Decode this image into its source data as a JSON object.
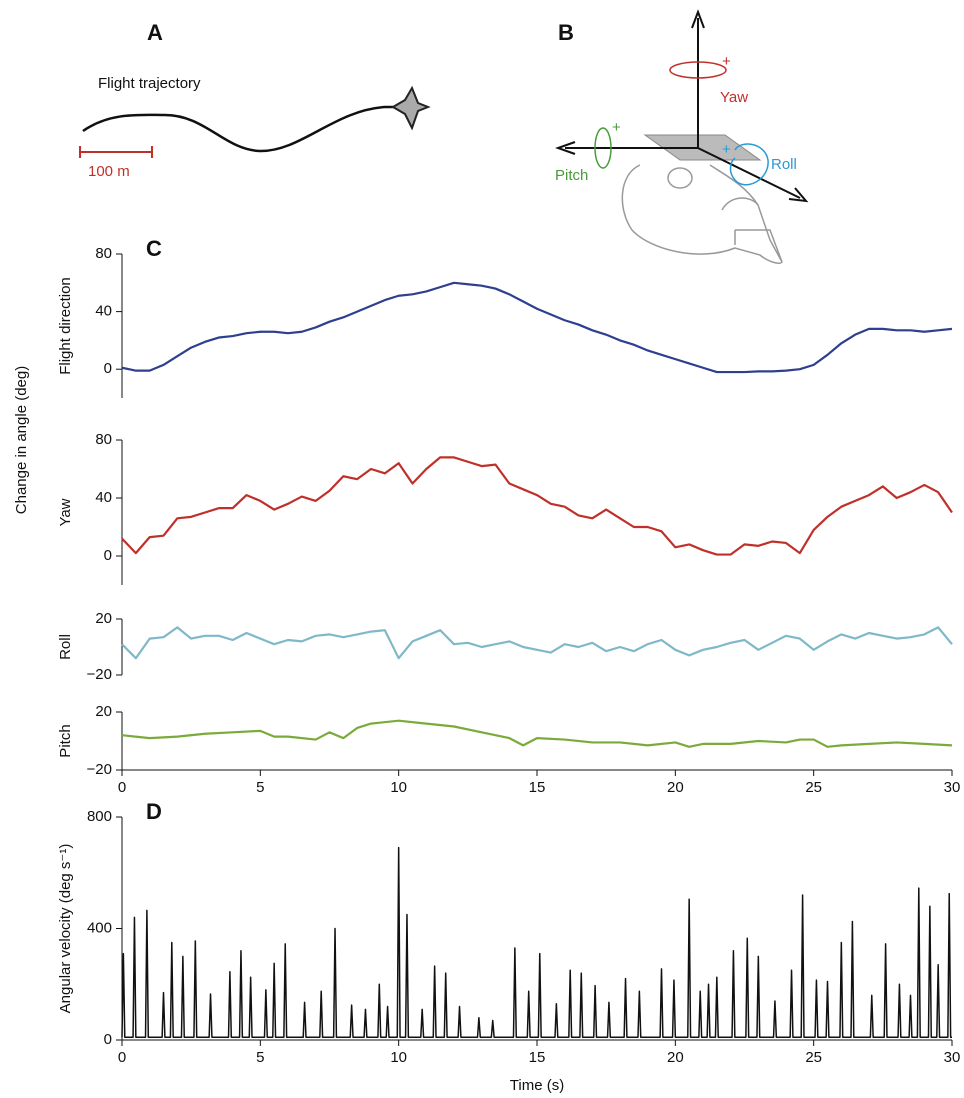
{
  "panel_a": {
    "label": "A",
    "title": "Flight trajectory",
    "scale": "100 m"
  },
  "panel_b": {
    "label": "B",
    "yaw": "Yaw",
    "roll": "Roll",
    "pitch": "Pitch",
    "yaw_sign": "+",
    "roll_sign": "+",
    "pitch_sign": "+"
  },
  "shared_ylabel": "Change in angle (deg)",
  "chart_data": [
    {
      "type": "line",
      "panel_label": "C",
      "ylabel": "Flight direction",
      "color": "#2e3f8f",
      "x": [
        0,
        0.5,
        1,
        1.5,
        2,
        2.5,
        3,
        3.5,
        4,
        4.5,
        5,
        5.5,
        6,
        6.5,
        7,
        7.5,
        8,
        8.5,
        9,
        9.5,
        10,
        10.5,
        11,
        11.5,
        12,
        12.5,
        13,
        13.5,
        14,
        14.5,
        15,
        15.5,
        16,
        16.5,
        17,
        17.5,
        18,
        18.5,
        19,
        19.5,
        20,
        20.5,
        21,
        21.5,
        22,
        22.5,
        23,
        23.5,
        24,
        24.5,
        25,
        25.5,
        26,
        26.5,
        27,
        27.5,
        28,
        28.5,
        29,
        29.5,
        30
      ],
      "values": [
        1,
        -1,
        -1,
        3,
        9,
        15,
        19,
        22,
        23,
        25,
        26,
        26,
        25,
        26,
        29,
        33,
        36,
        40,
        44,
        48,
        51,
        52,
        54,
        57,
        60,
        59,
        58,
        56,
        52,
        47,
        42,
        38,
        34,
        31,
        27,
        24,
        20,
        17,
        13,
        10,
        7,
        4,
        1,
        -2,
        -2,
        -2,
        -1.5,
        -1.5,
        -1,
        0,
        3,
        10,
        18,
        24,
        28,
        28,
        27,
        27,
        26,
        27,
        28
      ],
      "xlim": [
        0,
        30
      ],
      "ylim": [
        -20,
        80
      ],
      "yticks": [
        0,
        40,
        80
      ]
    },
    {
      "type": "line",
      "ylabel": "Yaw",
      "color": "#c0302b",
      "x": [
        0,
        0.5,
        1,
        1.5,
        2,
        2.5,
        3,
        3.5,
        4,
        4.5,
        5,
        5.5,
        6,
        6.5,
        7,
        7.5,
        8,
        8.5,
        9,
        9.5,
        10,
        10.5,
        11,
        11.5,
        12,
        12.5,
        13,
        13.5,
        14,
        14.5,
        15,
        15.5,
        16,
        16.5,
        17,
        17.5,
        18,
        18.5,
        19,
        19.5,
        20,
        20.5,
        21,
        21.5,
        22,
        22.5,
        23,
        23.5,
        24,
        24.5,
        25,
        25.5,
        26,
        26.5,
        27,
        27.5,
        28,
        28.5,
        29,
        29.5,
        30
      ],
      "values": [
        12,
        2,
        13,
        14,
        26,
        27,
        30,
        33,
        33,
        42,
        38,
        32,
        36,
        41,
        38,
        45,
        55,
        53,
        60,
        57,
        64,
        50,
        60,
        68,
        68,
        65,
        62,
        63,
        50,
        46,
        42,
        36,
        34,
        28,
        26,
        32,
        26,
        20,
        20,
        17,
        6,
        8,
        4,
        1,
        1,
        8,
        7,
        10,
        9,
        2,
        18,
        27,
        34,
        38,
        42,
        48,
        40,
        44,
        49,
        44,
        30
      ],
      "xlim": [
        0,
        30
      ],
      "ylim": [
        -20,
        80
      ],
      "yticks": [
        0,
        40,
        80
      ]
    },
    {
      "type": "line",
      "ylabel": "Roll",
      "color": "#7fb8c9",
      "x": [
        0,
        0.5,
        1,
        1.5,
        2,
        2.5,
        3,
        3.5,
        4,
        4.5,
        5,
        5.5,
        6,
        6.5,
        7,
        7.5,
        8,
        8.5,
        9,
        9.5,
        10,
        10.5,
        11,
        11.5,
        12,
        12.5,
        13,
        13.5,
        14,
        14.5,
        15,
        15.5,
        16,
        16.5,
        17,
        17.5,
        18,
        18.5,
        19,
        19.5,
        20,
        20.5,
        21,
        21.5,
        22,
        22.5,
        23,
        23.5,
        24,
        24.5,
        25,
        25.5,
        26,
        26.5,
        27,
        27.5,
        28,
        28.5,
        29,
        29.5,
        30
      ],
      "values": [
        2,
        -8,
        6,
        7,
        14,
        6,
        8,
        8,
        5,
        10,
        6,
        2,
        5,
        4,
        8,
        9,
        7,
        9,
        11,
        12,
        -8,
        4,
        8,
        12,
        2,
        3,
        0,
        2,
        4,
        0,
        -2,
        -4,
        2,
        0,
        3,
        -3,
        0,
        -3,
        2,
        5,
        -2,
        -6,
        -2,
        0,
        3,
        5,
        -2,
        3,
        8,
        6,
        -2,
        4,
        9,
        6,
        10,
        8,
        6,
        7,
        9,
        14,
        2
      ],
      "xlim": [
        0,
        30
      ],
      "ylim": [
        -20,
        20
      ],
      "yticks": [
        {
          "value": -20,
          "label": "−20"
        },
        20
      ]
    },
    {
      "type": "line",
      "ylabel": "Pitch",
      "color": "#7aab3a",
      "x": [
        0,
        1,
        2,
        3,
        4,
        5,
        5.5,
        6,
        7,
        7.5,
        8,
        8.5,
        9,
        10,
        11,
        12,
        13,
        14,
        14.5,
        15,
        16,
        17,
        18,
        19,
        20,
        20.5,
        21,
        22,
        23,
        24,
        24.5,
        25,
        25.5,
        26,
        27,
        28,
        29,
        30
      ],
      "values": [
        4,
        2,
        3,
        5,
        6,
        7,
        3,
        3,
        1,
        6,
        2,
        9,
        12,
        14,
        12,
        10,
        6,
        2,
        -3,
        2,
        1,
        -1,
        -1,
        -3,
        -1,
        -4,
        -2,
        -2,
        0,
        -1,
        1,
        1,
        -4,
        -3,
        -2,
        -1,
        -2,
        -3
      ],
      "xlim": [
        0,
        30
      ],
      "xticks": [
        0,
        5,
        10,
        15,
        20,
        25,
        30
      ],
      "ylim": [
        -20,
        20
      ],
      "yticks": [
        {
          "value": -20,
          "label": "−20"
        },
        20
      ]
    },
    {
      "type": "line",
      "panel_label": "D",
      "ylabel": "Angular velocity (deg s⁻¹)",
      "xlabel": "Time (s)",
      "color": "#111111",
      "x": [
        0,
        0.05,
        0.1,
        0.4,
        0.45,
        0.5,
        0.85,
        0.9,
        0.95,
        1.45,
        1.5,
        1.55,
        1.75,
        1.8,
        1.85,
        2.15,
        2.2,
        2.25,
        2.6,
        2.65,
        2.7,
        3.15,
        3.2,
        3.25,
        3.85,
        3.9,
        3.95,
        4.25,
        4.3,
        4.35,
        4.6,
        4.65,
        4.7,
        5.15,
        5.2,
        5.25,
        5.45,
        5.5,
        5.55,
        5.85,
        5.9,
        5.95,
        6.55,
        6.6,
        6.65,
        7.15,
        7.2,
        7.25,
        7.65,
        7.7,
        7.75,
        8.25,
        8.3,
        8.35,
        8.75,
        8.8,
        8.85,
        9.25,
        9.3,
        9.35,
        9.55,
        9.6,
        9.65,
        9.95,
        10,
        10.05,
        10.25,
        10.3,
        10.35,
        10.8,
        10.85,
        10.9,
        11.25,
        11.3,
        11.35,
        11.65,
        11.7,
        11.75,
        12.15,
        12.2,
        12.25,
        12.85,
        12.9,
        12.95,
        13.35,
        13.4,
        13.45,
        14.15,
        14.2,
        14.25,
        14.65,
        14.7,
        14.75,
        15.05,
        15.1,
        15.15,
        15.65,
        15.7,
        15.75,
        16.15,
        16.2,
        16.25,
        16.55,
        16.6,
        16.65,
        17.05,
        17.1,
        17.15,
        17.55,
        17.6,
        17.65,
        18.15,
        18.2,
        18.25,
        18.65,
        18.7,
        18.75,
        19.45,
        19.5,
        19.55,
        19.9,
        19.95,
        20,
        20.45,
        20.5,
        20.55,
        20.85,
        20.9,
        20.95,
        21.15,
        21.2,
        21.25,
        21.45,
        21.5,
        21.55,
        22.05,
        22.1,
        22.15,
        22.55,
        22.6,
        22.65,
        22.95,
        23,
        23.05,
        23.55,
        23.6,
        23.65,
        24.15,
        24.2,
        24.25,
        24.55,
        24.6,
        24.65,
        25.05,
        25.1,
        25.15,
        25.45,
        25.5,
        25.55,
        25.95,
        26,
        26.05,
        26.35,
        26.4,
        26.45,
        27.05,
        27.1,
        27.15,
        27.55,
        27.6,
        27.65,
        28.05,
        28.1,
        28.15,
        28.45,
        28.5,
        28.55,
        28.75,
        28.8,
        28.85,
        29.15,
        29.2,
        29.25,
        29.45,
        29.5,
        29.55,
        29.85,
        29.9,
        29.95,
        30
      ],
      "values": [
        10,
        310,
        10,
        10,
        440,
        10,
        10,
        465,
        10,
        10,
        170,
        10,
        10,
        350,
        10,
        10,
        300,
        10,
        10,
        355,
        10,
        10,
        165,
        10,
        10,
        245,
        10,
        10,
        320,
        10,
        10,
        225,
        10,
        10,
        180,
        10,
        10,
        275,
        10,
        10,
        345,
        10,
        10,
        135,
        10,
        10,
        175,
        10,
        10,
        400,
        10,
        10,
        125,
        10,
        10,
        110,
        10,
        10,
        200,
        10,
        10,
        120,
        10,
        10,
        690,
        10,
        10,
        450,
        10,
        10,
        110,
        10,
        10,
        265,
        10,
        10,
        240,
        10,
        10,
        120,
        10,
        10,
        80,
        10,
        10,
        70,
        10,
        10,
        330,
        10,
        10,
        175,
        10,
        10,
        310,
        10,
        10,
        130,
        10,
        10,
        250,
        10,
        10,
        240,
        10,
        10,
        195,
        10,
        10,
        135,
        10,
        10,
        220,
        10,
        10,
        175,
        10,
        10,
        255,
        10,
        10,
        215,
        10,
        10,
        505,
        10,
        10,
        175,
        10,
        10,
        200,
        10,
        10,
        225,
        10,
        10,
        320,
        10,
        10,
        365,
        10,
        10,
        300,
        10,
        10,
        140,
        10,
        10,
        250,
        10,
        10,
        520,
        10,
        10,
        215,
        10,
        10,
        210,
        10,
        10,
        350,
        10,
        10,
        425,
        10,
        10,
        160,
        10,
        10,
        345,
        10,
        10,
        200,
        10,
        10,
        160,
        10,
        10,
        545,
        10,
        10,
        480,
        10,
        10,
        270,
        10,
        10,
        525,
        10,
        10
      ],
      "xlim": [
        0,
        30
      ],
      "xticks": [
        0,
        5,
        10,
        15,
        20,
        25,
        30
      ],
      "ylim": [
        0,
        800
      ],
      "yticks": [
        0,
        400,
        800
      ]
    }
  ]
}
